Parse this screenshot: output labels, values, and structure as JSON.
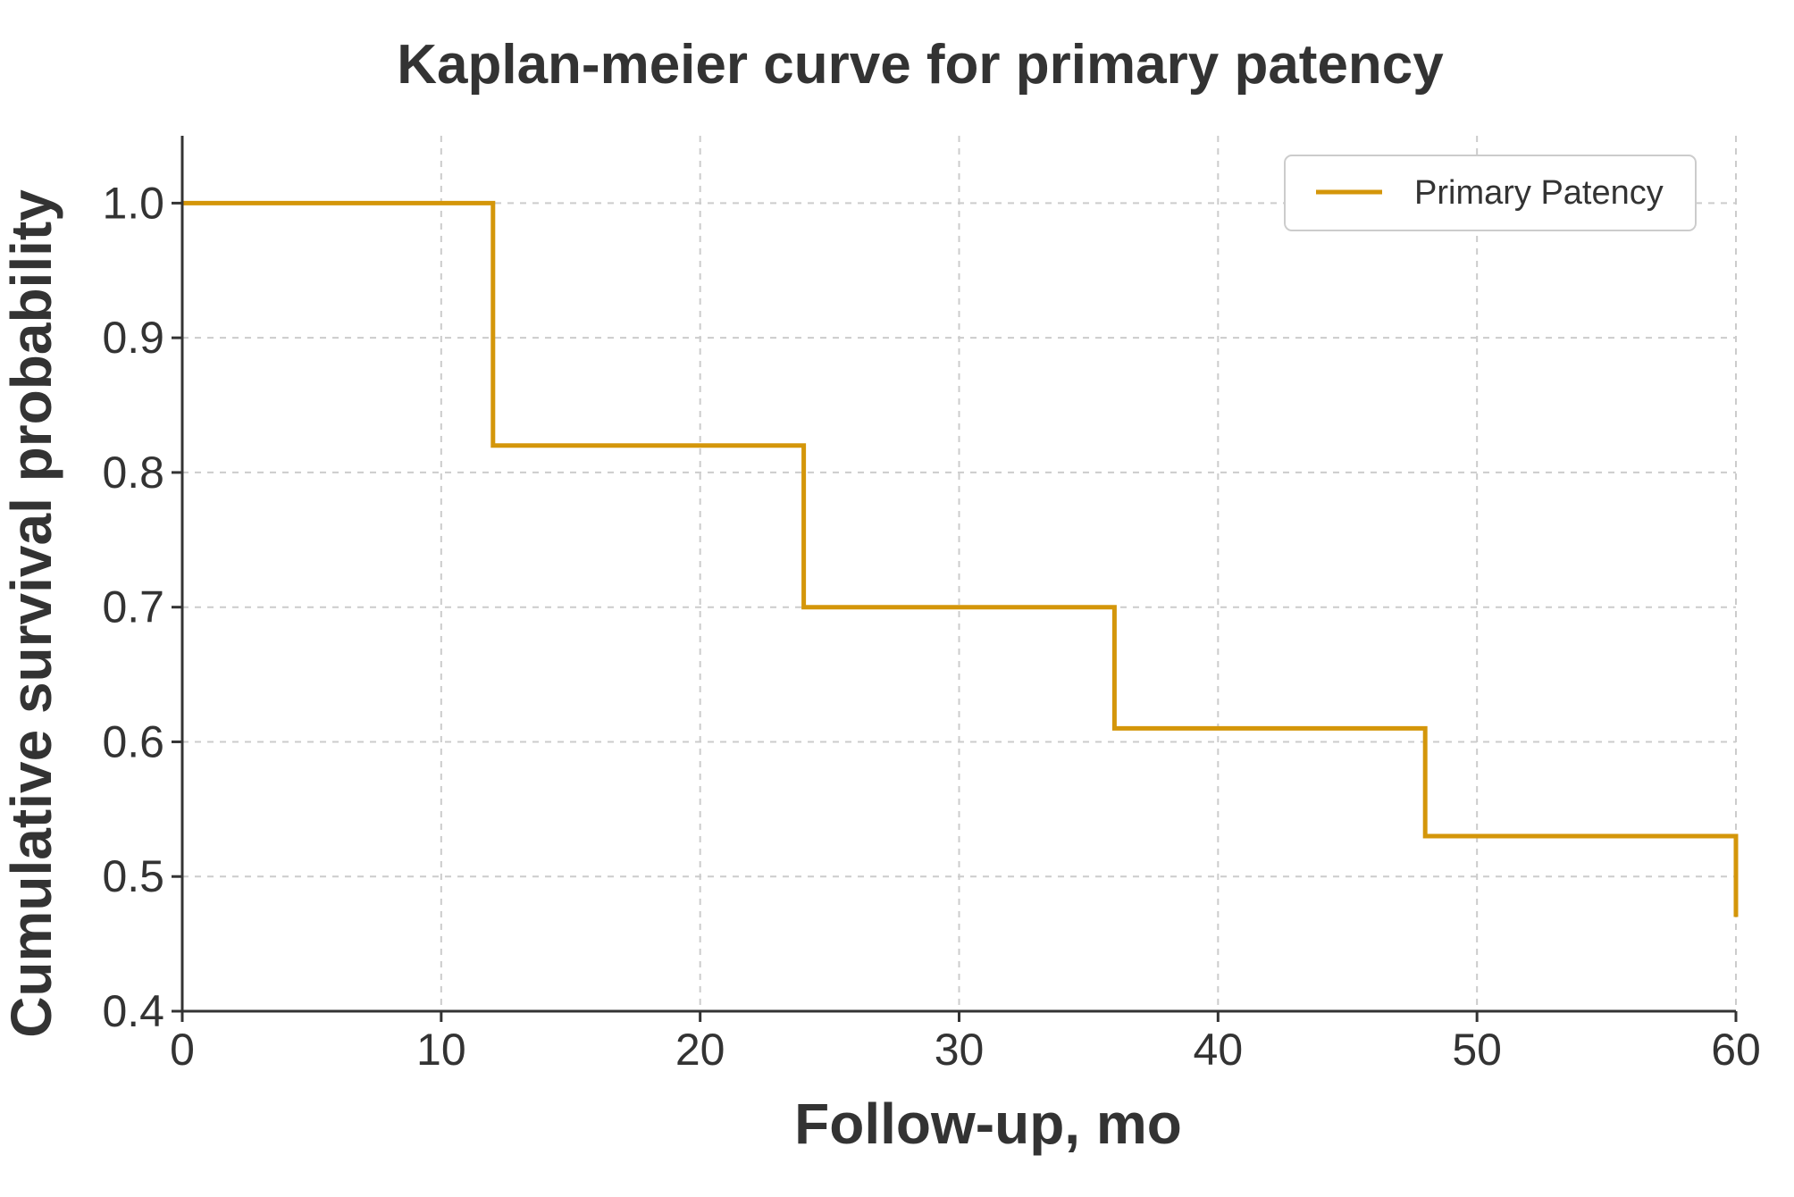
{
  "chart_data": {
    "type": "line",
    "title": "Kaplan-meier curve for primary patency",
    "xlabel": "Follow-up, mo",
    "ylabel": "Cumulative survival probability",
    "xlim": [
      0,
      60
    ],
    "ylim": [
      0.4,
      1.05
    ],
    "x_ticks": [
      0,
      10,
      20,
      30,
      40,
      50,
      60
    ],
    "x_tick_labels": [
      "0",
      "10",
      "20",
      "30",
      "40",
      "50",
      "60"
    ],
    "y_ticks": [
      0.4,
      0.5,
      0.6,
      0.7,
      0.8,
      0.9,
      1.0
    ],
    "y_tick_labels": [
      "0.4",
      "0.5",
      "0.6",
      "0.7",
      "0.8",
      "0.9",
      "1.0"
    ],
    "grid": true,
    "legend_position": "top-right",
    "step": "post",
    "series": [
      {
        "name": "Primary Patency",
        "color": "#d4960a",
        "x": [
          0,
          12,
          24,
          36,
          48,
          60
        ],
        "y": [
          1.0,
          0.82,
          0.7,
          0.61,
          0.53,
          0.47
        ]
      }
    ]
  }
}
